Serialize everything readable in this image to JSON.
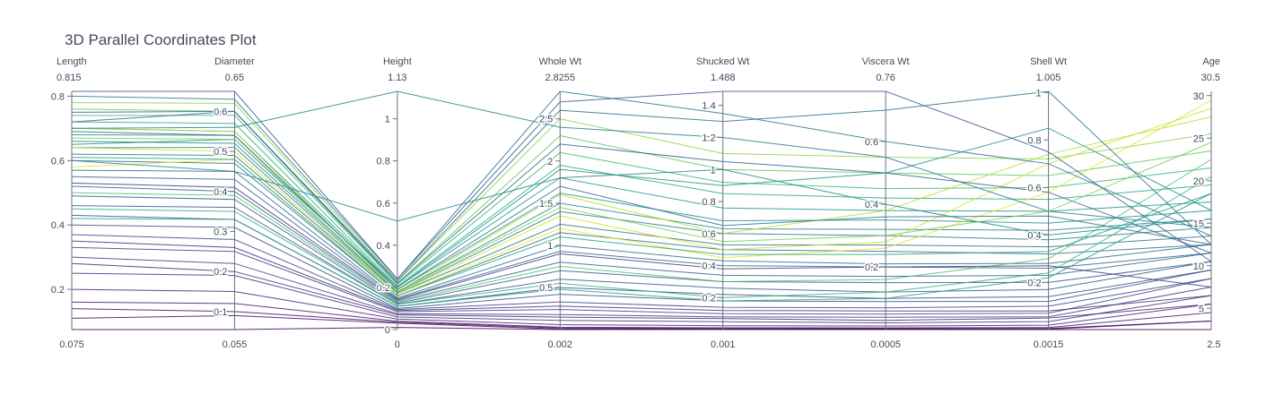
{
  "chart_data": {
    "type": "parallel_coordinates",
    "title": "3D Parallel Coordinates Plot",
    "colorscale": "viridis",
    "colorscale_stops": [
      "#440154",
      "#482878",
      "#3e4989",
      "#31688e",
      "#26828e",
      "#1f9e89",
      "#35b779",
      "#6ece58",
      "#b5de2b",
      "#fde725"
    ],
    "color_variable": "Age",
    "dimensions": [
      {
        "name": "Length",
        "range_min_label": "0.075",
        "range_max_label": "0.815",
        "min": 0.075,
        "max": 0.815,
        "ticks": [
          0.2,
          0.4,
          0.6,
          0.8
        ],
        "tick_labels": [
          "0.2",
          "0.4",
          "0.6",
          "0.8"
        ]
      },
      {
        "name": "Diameter",
        "range_min_label": "0.055",
        "range_max_label": "0.65",
        "min": 0.055,
        "max": 0.65,
        "ticks": [
          0.1,
          0.2,
          0.3,
          0.4,
          0.5,
          0.6
        ],
        "tick_labels": [
          "0.1",
          "0.2",
          "0.3",
          "0.4",
          "0.5",
          "0.6"
        ]
      },
      {
        "name": "Height",
        "range_min_label": "0",
        "range_max_label": "1.13",
        "min": 0,
        "max": 1.13,
        "ticks": [
          0,
          0.2,
          0.4,
          0.6,
          0.8,
          1
        ],
        "tick_labels": [
          "0",
          "0.2",
          "0.4",
          "0.6",
          "0.8",
          "1"
        ]
      },
      {
        "name": "Whole Wt",
        "range_min_label": "0.002",
        "range_max_label": "2.8255",
        "min": 0.002,
        "max": 2.8255,
        "ticks": [
          0.5,
          1,
          1.5,
          2,
          2.5
        ],
        "tick_labels": [
          "0.5",
          "1",
          "1.5",
          "2",
          "2.5"
        ]
      },
      {
        "name": "Shucked Wt",
        "range_min_label": "0.001",
        "range_max_label": "1.488",
        "min": 0.001,
        "max": 1.488,
        "ticks": [
          0.2,
          0.4,
          0.6,
          0.8,
          1,
          1.2,
          1.4
        ],
        "tick_labels": [
          "0.2",
          "0.4",
          "0.6",
          "0.8",
          "1",
          "1.2",
          "1.4"
        ]
      },
      {
        "name": "Viscera Wt",
        "range_min_label": "0.0005",
        "range_max_label": "0.76",
        "min": 0.0005,
        "max": 0.76,
        "ticks": [
          0.2,
          0.4,
          0.6
        ],
        "tick_labels": [
          "0.2",
          "0.4",
          "0.6"
        ]
      },
      {
        "name": "Shell Wt",
        "range_min_label": "0.0015",
        "range_max_label": "1.005",
        "min": 0.0015,
        "max": 1.005,
        "ticks": [
          0.2,
          0.4,
          0.6,
          0.8,
          1
        ],
        "tick_labels": [
          "0.2",
          "0.4",
          "0.6",
          "0.8",
          "1"
        ]
      },
      {
        "name": "Age",
        "range_min_label": "2.5",
        "range_max_label": "30.5",
        "min": 2.5,
        "max": 30.5,
        "ticks": [
          5,
          10,
          15,
          20,
          25,
          30
        ],
        "tick_labels": [
          "5",
          "10",
          "15",
          "20",
          "25",
          "30"
        ]
      }
    ],
    "records": [
      [
        0.075,
        0.055,
        0.01,
        0.002,
        0.001,
        0.0005,
        0.0015,
        2.5
      ],
      [
        0.11,
        0.09,
        0.03,
        0.008,
        0.003,
        0.002,
        0.003,
        3.5
      ],
      [
        0.16,
        0.12,
        0.04,
        0.03,
        0.012,
        0.006,
        0.01,
        4.5
      ],
      [
        0.2,
        0.15,
        0.05,
        0.06,
        0.025,
        0.012,
        0.02,
        5.5
      ],
      [
        0.25,
        0.19,
        0.06,
        0.11,
        0.05,
        0.022,
        0.035,
        6.5
      ],
      [
        0.3,
        0.22,
        0.075,
        0.18,
        0.08,
        0.04,
        0.055,
        7.5
      ],
      [
        0.33,
        0.25,
        0.085,
        0.24,
        0.1,
        0.05,
        0.07,
        8.5
      ],
      [
        0.37,
        0.28,
        0.095,
        0.33,
        0.14,
        0.07,
        0.1,
        8.5
      ],
      [
        0.4,
        0.31,
        0.1,
        0.42,
        0.18,
        0.09,
        0.12,
        9.5
      ],
      [
        0.43,
        0.33,
        0.11,
        0.5,
        0.22,
        0.1,
        0.14,
        9.5
      ],
      [
        0.46,
        0.36,
        0.12,
        0.6,
        0.26,
        0.12,
        0.17,
        10.5
      ],
      [
        0.49,
        0.38,
        0.125,
        0.7,
        0.3,
        0.15,
        0.2,
        10.5
      ],
      [
        0.52,
        0.4,
        0.135,
        0.8,
        0.34,
        0.17,
        0.23,
        11.5
      ],
      [
        0.55,
        0.43,
        0.145,
        0.93,
        0.4,
        0.2,
        0.26,
        11.5
      ],
      [
        0.57,
        0.45,
        0.15,
        1.0,
        0.43,
        0.21,
        0.28,
        12.5
      ],
      [
        0.6,
        0.47,
        0.16,
        1.15,
        0.5,
        0.25,
        0.32,
        12.5
      ],
      [
        0.62,
        0.49,
        0.17,
        1.25,
        0.53,
        0.27,
        0.35,
        13.5
      ],
      [
        0.64,
        0.51,
        0.175,
        1.4,
        0.6,
        0.3,
        0.38,
        14.5
      ],
      [
        0.66,
        0.52,
        0.18,
        1.5,
        0.63,
        0.32,
        0.42,
        15.5
      ],
      [
        0.68,
        0.54,
        0.19,
        1.62,
        0.68,
        0.35,
        0.45,
        16.5
      ],
      [
        0.7,
        0.55,
        0.2,
        1.8,
        0.76,
        0.38,
        0.5,
        17.5
      ],
      [
        0.72,
        0.57,
        0.205,
        1.95,
        0.85,
        0.42,
        0.55,
        19.5
      ],
      [
        0.74,
        0.59,
        0.215,
        2.1,
        0.92,
        0.45,
        0.6,
        21.5
      ],
      [
        0.76,
        0.6,
        0.22,
        2.3,
        1.0,
        0.5,
        0.65,
        23.5
      ],
      [
        0.78,
        0.62,
        0.23,
        2.5,
        1.1,
        0.55,
        0.72,
        25.5
      ],
      [
        0.7,
        0.55,
        0.18,
        1.6,
        0.6,
        0.38,
        0.74,
        27.5
      ],
      [
        0.58,
        0.48,
        0.16,
        1.2,
        0.45,
        0.26,
        0.58,
        29.5
      ],
      [
        0.64,
        0.5,
        0.17,
        1.35,
        0.5,
        0.28,
        0.7,
        28.5
      ],
      [
        0.5,
        0.39,
        0.13,
        0.75,
        0.3,
        0.16,
        0.3,
        22.5
      ],
      [
        0.45,
        0.35,
        0.12,
        0.55,
        0.2,
        0.12,
        0.24,
        20.5
      ],
      [
        0.42,
        0.33,
        0.11,
        0.48,
        0.18,
        0.1,
        0.22,
        18.5
      ],
      [
        0.69,
        0.54,
        0.19,
        1.7,
        0.65,
        0.36,
        0.48,
        12.5
      ],
      [
        0.75,
        0.6,
        0.22,
        2.2,
        1.05,
        0.5,
        0.58,
        11.5
      ],
      [
        0.8,
        0.63,
        0.24,
        2.8255,
        1.35,
        0.6,
        0.7,
        13.5
      ],
      [
        0.815,
        0.65,
        0.24,
        2.7,
        1.488,
        0.76,
        0.75,
        10.5
      ],
      [
        0.7,
        0.56,
        1.13,
        2.4,
        1.2,
        0.55,
        0.5,
        14.5
      ],
      [
        0.6,
        0.45,
        0.515,
        1.8,
        1.0,
        0.4,
        0.4,
        15.5
      ],
      [
        0.72,
        0.6,
        0.23,
        2.6,
        1.3,
        0.7,
        1.005,
        12.5
      ],
      [
        0.65,
        0.53,
        0.2,
        1.9,
        0.9,
        0.5,
        0.85,
        16.5
      ],
      [
        0.53,
        0.41,
        0.14,
        0.9,
        0.38,
        0.2,
        0.27,
        7.5
      ],
      [
        0.35,
        0.26,
        0.09,
        0.28,
        0.12,
        0.06,
        0.08,
        6.5
      ],
      [
        0.28,
        0.2,
        0.07,
        0.15,
        0.07,
        0.03,
        0.05,
        5.5
      ],
      [
        0.14,
        0.1,
        0.035,
        0.02,
        0.008,
        0.004,
        0.006,
        3.5
      ],
      [
        0.61,
        0.48,
        0.16,
        1.1,
        0.47,
        0.24,
        0.33,
        18.5
      ],
      [
        0.67,
        0.53,
        0.18,
        1.45,
        0.55,
        0.3,
        0.5,
        24.5
      ]
    ]
  }
}
